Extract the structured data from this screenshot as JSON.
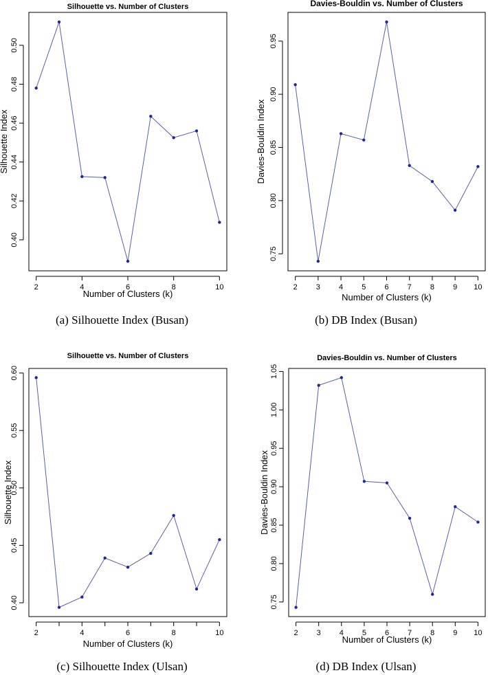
{
  "colors": {
    "line": "#5b5ea6",
    "point": "#1f2a8a",
    "axis": "#000000",
    "background": "#ffffff"
  },
  "chart_data": [
    {
      "type": "line",
      "title": "Silhouette vs. Number of Clusters",
      "xlabel": "Number of Clusters (k)",
      "ylabel": "Silhouette Index",
      "caption": "(a) Silhouette Index (Busan)",
      "x": [
        2,
        3,
        4,
        5,
        6,
        7,
        8,
        9,
        10
      ],
      "values": [
        0.478,
        0.512,
        0.4325,
        0.432,
        0.389,
        0.4635,
        0.4525,
        0.456,
        0.409
      ],
      "xlim": [
        2,
        10
      ],
      "ylim": [
        0.389,
        0.512
      ],
      "x_ticks": [
        2,
        4,
        6,
        8,
        10
      ],
      "x_tick_labels": [
        "2",
        "4",
        "6",
        "8",
        "10"
      ],
      "y_ticks": [
        0.4,
        0.42,
        0.44,
        0.46,
        0.48,
        0.5
      ],
      "y_tick_labels": [
        "0.40",
        "0.42",
        "0.44",
        "0.46",
        "0.48",
        "0.50"
      ],
      "grid": false
    },
    {
      "type": "line",
      "title": "Davies-Bouldin vs. Number of Clusters",
      "xlabel": "Number of Clusters (k)",
      "ylabel": "Davies-Bouldin Index",
      "caption": "(b) DB Index (Busan)",
      "x": [
        2,
        3,
        4,
        5,
        6,
        7,
        8,
        9,
        10
      ],
      "values": [
        0.909,
        0.743,
        0.863,
        0.857,
        0.968,
        0.833,
        0.818,
        0.791,
        0.832
      ],
      "xlim": [
        2,
        10
      ],
      "ylim": [
        0.743,
        0.968
      ],
      "x_ticks": [
        2,
        3,
        4,
        5,
        6,
        7,
        8,
        9,
        10
      ],
      "x_tick_labels": [
        "2",
        "3",
        "4",
        "5",
        "6",
        "7",
        "8",
        "9",
        "10"
      ],
      "y_ticks": [
        0.75,
        0.8,
        0.85,
        0.9,
        0.95
      ],
      "y_tick_labels": [
        "0.75",
        "0.80",
        "0.85",
        "0.90",
        "0.95"
      ],
      "grid": false
    },
    {
      "type": "line",
      "title": "Silhouette vs. Number of Clusters",
      "xlabel": "Number of Clusters (k)",
      "ylabel": "Silhouette Index",
      "caption": "(c) Silhouette Index (Ulsan)",
      "x": [
        2,
        3,
        4,
        5,
        6,
        7,
        8,
        9,
        10
      ],
      "values": [
        0.596,
        0.396,
        0.405,
        0.439,
        0.431,
        0.443,
        0.476,
        0.412,
        0.455
      ],
      "xlim": [
        2,
        10
      ],
      "ylim": [
        0.396,
        0.596
      ],
      "x_ticks": [
        2,
        3,
        4,
        5,
        6,
        7,
        8,
        9,
        10
      ],
      "x_tick_labels": [
        "2",
        "",
        "4",
        "",
        "6",
        "",
        "8",
        "",
        "10"
      ],
      "y_ticks": [
        0.4,
        0.45,
        0.5,
        0.55,
        0.6
      ],
      "y_tick_labels": [
        "0.40",
        "0.45",
        "0.50",
        "0.55",
        "0.60"
      ],
      "grid": false
    },
    {
      "type": "line",
      "title": "Davies-Bouldin vs. Number of Clusters",
      "xlabel": "Number of Clusters (k)",
      "ylabel": "Davies-Bouldin Index",
      "caption": "(d) DB Index (Ulsan)",
      "x": [
        2,
        3,
        4,
        5,
        6,
        7,
        8,
        9,
        10
      ],
      "values": [
        0.743,
        1.032,
        1.042,
        0.907,
        0.905,
        0.859,
        0.76,
        0.874,
        0.854
      ],
      "xlim": [
        2,
        10
      ],
      "ylim": [
        0.743,
        1.042
      ],
      "x_ticks": [
        2,
        3,
        4,
        5,
        6,
        7,
        8,
        9,
        10
      ],
      "x_tick_labels": [
        "2",
        "3",
        "4",
        "5",
        "6",
        "7",
        "8",
        "9",
        "10"
      ],
      "y_ticks": [
        0.75,
        0.8,
        0.85,
        0.9,
        0.95,
        1.0,
        1.05
      ],
      "y_tick_labels": [
        "0.75",
        "0.80",
        "0.85",
        "0.90",
        "0.95",
        "1.00",
        "1.05"
      ],
      "grid": false
    }
  ]
}
